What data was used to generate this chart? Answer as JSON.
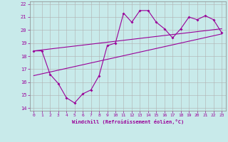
{
  "xlabel": "Windchill (Refroidissement éolien,°C)",
  "bg_color": "#c8eaea",
  "line_color": "#990099",
  "grid_color": "#b0b0b0",
  "xlim": [
    -0.5,
    23.5
  ],
  "ylim": [
    13.8,
    22.2
  ],
  "xticks": [
    0,
    1,
    2,
    3,
    4,
    5,
    6,
    7,
    8,
    9,
    10,
    11,
    12,
    13,
    14,
    15,
    16,
    17,
    18,
    19,
    20,
    21,
    22,
    23
  ],
  "yticks": [
    14,
    15,
    16,
    17,
    18,
    19,
    20,
    21,
    22
  ],
  "zigzag_x": [
    0,
    1,
    2,
    3,
    4,
    5,
    6,
    7,
    8,
    9,
    10,
    11,
    12,
    13,
    14,
    15,
    16,
    17,
    18,
    19,
    20,
    21,
    22,
    23
  ],
  "zigzag_y": [
    18.4,
    18.4,
    16.6,
    15.9,
    14.8,
    14.4,
    15.1,
    15.4,
    16.5,
    18.8,
    19.0,
    21.3,
    20.6,
    21.5,
    21.5,
    20.6,
    20.1,
    19.4,
    20.1,
    21.0,
    20.8,
    21.1,
    20.8,
    19.8
  ],
  "line1_x": [
    0,
    23
  ],
  "line1_y": [
    18.4,
    20.1
  ],
  "line2_x": [
    0,
    23
  ],
  "line2_y": [
    16.5,
    19.7
  ]
}
